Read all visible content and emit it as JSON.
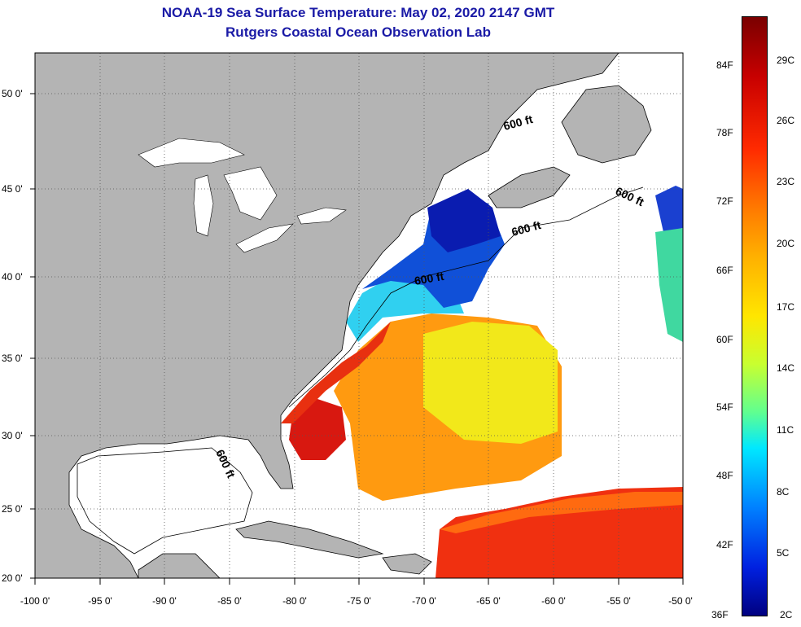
{
  "title": {
    "line1": "NOAA-19 Sea Surface Temperature:  May 02, 2020 2147 GMT",
    "line2": "Rutgers Coastal Ocean Observation Lab"
  },
  "axes": {
    "lat_labels": [
      "50 0'",
      "45 0'",
      "40 0'",
      "35 0'",
      "30 0'",
      "25 0'",
      "20 0'"
    ],
    "lon_labels": [
      "-100 0'",
      "-95 0'",
      "-90 0'",
      "-85 0'",
      "-80 0'",
      "-75 0'",
      "-70 0'",
      "-65 0'",
      "-60 0'",
      "-55 0'",
      "-50 0'"
    ],
    "lon_range": [
      -100,
      -50
    ],
    "lat_range": [
      20,
      52.5
    ]
  },
  "contour_labels": [
    "600 ft",
    "600 ft",
    "600 ft",
    "600 ft",
    "600 ft"
  ],
  "colorbar": {
    "fahrenheit": [
      "84F",
      "78F",
      "72F",
      "66F",
      "60F",
      "54F",
      "48F",
      "42F",
      "36F"
    ],
    "celsius": [
      "29C",
      "26C",
      "23C",
      "20C",
      "17C",
      "14C",
      "11C",
      "8C",
      "5C",
      "2C"
    ]
  },
  "colors": {
    "land": "#b4b4b4",
    "no_data": "#ffffff",
    "title": "#1a1aa6"
  }
}
